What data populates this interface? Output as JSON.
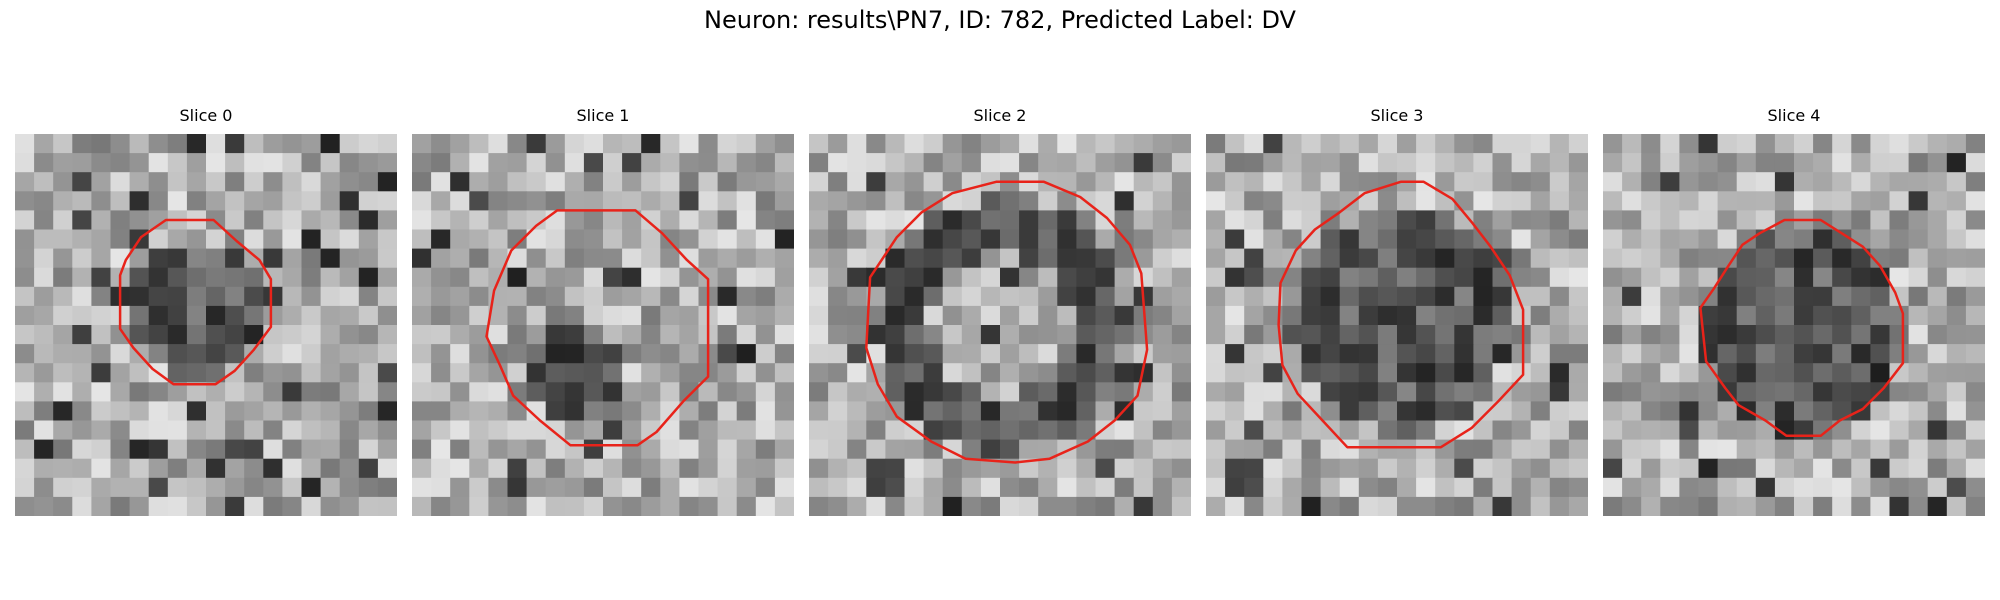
{
  "figure": {
    "title": "Neuron: results\\PN7, ID: 782, Predicted Label: DV"
  },
  "style": {
    "contour_color": "#e8231a",
    "colormap": "grayscale"
  },
  "panels": [
    {
      "title": "Slice 0",
      "seed": 11,
      "contour": [
        [
          5.8,
          6.6
        ],
        [
          6.6,
          5.4
        ],
        [
          7.9,
          4.5
        ],
        [
          10.4,
          4.5
        ],
        [
          11.6,
          5.6
        ],
        [
          12.8,
          6.6
        ],
        [
          13.4,
          7.6
        ],
        [
          13.4,
          10.1
        ],
        [
          12.5,
          11.3
        ],
        [
          11.5,
          12.4
        ],
        [
          10.5,
          13.1
        ],
        [
          8.3,
          13.1
        ],
        [
          7.2,
          12.3
        ],
        [
          6.2,
          11.2
        ],
        [
          5.5,
          10.2
        ],
        [
          5.5,
          7.4
        ]
      ],
      "dark_blob": {
        "cx": 9.6,
        "cy": 9.2,
        "r": 3.6
      }
    },
    {
      "title": "Slice 1",
      "seed": 23,
      "contour": [
        [
          4.3,
          8.2
        ],
        [
          5.2,
          6.1
        ],
        [
          6.5,
          4.8
        ],
        [
          7.6,
          4.0
        ],
        [
          11.7,
          4.0
        ],
        [
          13.1,
          5.2
        ],
        [
          14.4,
          6.6
        ],
        [
          15.5,
          7.6
        ],
        [
          15.5,
          12.7
        ],
        [
          14.2,
          14.0
        ],
        [
          12.8,
          15.6
        ],
        [
          11.8,
          16.3
        ],
        [
          8.3,
          16.3
        ],
        [
          6.7,
          15.0
        ],
        [
          5.3,
          13.7
        ],
        [
          4.6,
          12.1
        ],
        [
          3.9,
          10.6
        ]
      ],
      "dark_blob": {
        "cx": 8.3,
        "cy": 12.5,
        "r": 2.6
      }
    },
    {
      "title": "Slice 2",
      "seed": 37,
      "contour": [
        [
          3.2,
          7.5
        ],
        [
          4.6,
          5.4
        ],
        [
          5.9,
          4.1
        ],
        [
          7.5,
          3.1
        ],
        [
          9.8,
          2.5
        ],
        [
          12.3,
          2.5
        ],
        [
          14.2,
          3.3
        ],
        [
          15.6,
          4.4
        ],
        [
          16.8,
          5.8
        ],
        [
          17.4,
          7.3
        ],
        [
          17.7,
          11.3
        ],
        [
          17.2,
          13.7
        ],
        [
          16.0,
          15.0
        ],
        [
          14.6,
          16.1
        ],
        [
          12.6,
          17.0
        ],
        [
          10.8,
          17.2
        ],
        [
          8.2,
          17.0
        ],
        [
          6.4,
          16.1
        ],
        [
          4.6,
          14.8
        ],
        [
          3.6,
          13.1
        ],
        [
          3.0,
          11.2
        ]
      ],
      "dark_blob": {
        "cx": 10.0,
        "cy": 10.0,
        "r": 6.6
      },
      "ring": true
    },
    {
      "title": "Slice 3",
      "seed": 51,
      "contour": [
        [
          3.9,
          7.8
        ],
        [
          4.7,
          6.1
        ],
        [
          5.7,
          5.0
        ],
        [
          7.0,
          4.1
        ],
        [
          8.3,
          3.1
        ],
        [
          10.2,
          2.5
        ],
        [
          11.4,
          2.5
        ],
        [
          12.9,
          3.4
        ],
        [
          13.9,
          4.6
        ],
        [
          14.9,
          5.9
        ],
        [
          15.9,
          7.4
        ],
        [
          16.6,
          9.2
        ],
        [
          16.6,
          12.6
        ],
        [
          15.3,
          14.0
        ],
        [
          13.9,
          15.4
        ],
        [
          12.3,
          16.4
        ],
        [
          10.0,
          16.4
        ],
        [
          7.4,
          16.4
        ],
        [
          6.1,
          15.0
        ],
        [
          4.8,
          13.6
        ],
        [
          4.0,
          12.1
        ],
        [
          3.8,
          10.0
        ]
      ],
      "dark_blob": {
        "cx": 10.2,
        "cy": 9.8,
        "r": 5.8
      }
    },
    {
      "title": "Slice 4",
      "seed": 67,
      "contour": [
        [
          5.1,
          9.1
        ],
        [
          5.8,
          8.1
        ],
        [
          6.5,
          7.0
        ],
        [
          7.3,
          5.8
        ],
        [
          8.2,
          5.2
        ],
        [
          9.5,
          4.5
        ],
        [
          11.4,
          4.5
        ],
        [
          12.5,
          5.2
        ],
        [
          13.6,
          5.9
        ],
        [
          14.5,
          6.9
        ],
        [
          15.3,
          8.3
        ],
        [
          15.7,
          9.4
        ],
        [
          15.7,
          12.0
        ],
        [
          14.7,
          13.3
        ],
        [
          13.6,
          14.4
        ],
        [
          12.4,
          15.0
        ],
        [
          11.4,
          15.8
        ],
        [
          9.6,
          15.8
        ],
        [
          8.5,
          15.0
        ],
        [
          7.1,
          14.2
        ],
        [
          6.4,
          13.3
        ],
        [
          5.4,
          11.9
        ]
      ],
      "dark_blob": {
        "cx": 10.5,
        "cy": 10.3,
        "r": 5.3
      }
    }
  ]
}
